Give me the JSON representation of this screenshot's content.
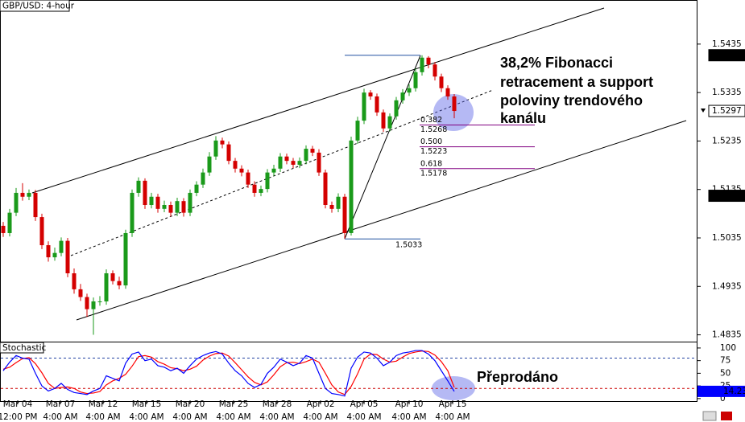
{
  "chart_data": [
    {
      "type": "candlestick",
      "title": "GBP/USD: 4-hour",
      "up_color": "#1a9a1a",
      "down_color": "#d40000",
      "xlim": [
        0,
        108
      ],
      "ylim": [
        1.4821,
        1.5526
      ],
      "xticks": [
        {
          "value": 2.75,
          "label": "Mar 04",
          "time": "12:00 PM"
        },
        {
          "value": 9.375,
          "label": "Mar 07",
          "time": "4:00 AM"
        },
        {
          "value": 16,
          "label": "Mar 12",
          "time": "4:00 AM"
        },
        {
          "value": 22.75,
          "label": "Mar 15",
          "time": "4:00 AM"
        },
        {
          "value": 29.5,
          "label": "Mar 20",
          "time": "4:00 AM"
        },
        {
          "value": 36.25,
          "label": "Mar 25",
          "time": "4:00 AM"
        },
        {
          "value": 43,
          "label": "Mar 28",
          "time": "4:00 AM"
        },
        {
          "value": 49.75,
          "label": "Apr 02",
          "time": "4:00 AM"
        },
        {
          "value": 56.5,
          "label": "Apr 05",
          "time": "4:00 AM"
        },
        {
          "value": 63.5,
          "label": "Apr 10",
          "time": "4:00 AM"
        },
        {
          "value": 70.25,
          "label": "Apr 15",
          "time": "4:00 AM"
        }
      ],
      "yticks": [
        1.5435,
        1.5335,
        1.5235,
        1.5135,
        1.5035,
        1.4935,
        1.4835
      ],
      "open": [
        1.506,
        1.5045,
        1.5087,
        1.5128,
        1.512,
        1.5128,
        1.5078,
        1.502,
        1.4995,
        1.5004,
        1.5029,
        1.4962,
        1.4929,
        1.4913,
        1.4888,
        1.4904,
        1.4904,
        1.4962,
        1.4946,
        1.4937,
        1.5045,
        1.5128,
        1.5153,
        1.5103,
        1.512,
        1.5095,
        1.5103,
        1.5087,
        1.5111,
        1.5087,
        1.5128,
        1.5145,
        1.517,
        1.5203,
        1.5236,
        1.5228,
        1.5194,
        1.5178,
        1.517,
        1.5145,
        1.5128,
        1.5136,
        1.517,
        1.5178,
        1.5203,
        1.5194,
        1.5186,
        1.5194,
        1.5219,
        1.5211,
        1.517,
        1.5103,
        1.5095,
        1.512,
        1.5045,
        1.5236,
        1.5277,
        1.5335,
        1.5327,
        1.5294,
        1.5261,
        1.5286,
        1.5319,
        1.5335,
        1.5344,
        1.5377,
        1.5407,
        1.5393,
        1.5368,
        1.5344,
        1.5327
      ],
      "high": [
        1.5068,
        1.5095,
        1.5138,
        1.5148,
        1.5135,
        1.5134,
        1.5085,
        1.5028,
        1.5015,
        1.5036,
        1.5035,
        1.4972,
        1.494,
        1.492,
        1.4912,
        1.4915,
        1.497,
        1.4968,
        1.4955,
        1.5052,
        1.5135,
        1.516,
        1.5158,
        1.5128,
        1.5126,
        1.5112,
        1.511,
        1.5118,
        1.5117,
        1.5135,
        1.5152,
        1.5178,
        1.5212,
        1.5245,
        1.5242,
        1.5234,
        1.52,
        1.5185,
        1.5176,
        1.5152,
        1.5143,
        1.5177,
        1.5186,
        1.521,
        1.5209,
        1.52,
        1.5201,
        1.5226,
        1.5225,
        1.5218,
        1.5176,
        1.511,
        1.5127,
        1.5126,
        1.5244,
        1.5285,
        1.5343,
        1.534,
        1.5333,
        1.53,
        1.5292,
        1.5326,
        1.5342,
        1.5352,
        1.5385,
        1.5412,
        1.541,
        1.5398,
        1.5374,
        1.535,
        1.5332
      ],
      "low": [
        1.5037,
        1.5038,
        1.508,
        1.5112,
        1.5113,
        1.507,
        1.5012,
        1.4986,
        1.4988,
        1.4997,
        1.4954,
        1.492,
        1.4905,
        1.4872,
        1.4835,
        1.4895,
        1.4897,
        1.4939,
        1.4929,
        1.493,
        1.5037,
        1.512,
        1.5095,
        1.5096,
        1.5087,
        1.5088,
        1.5079,
        1.508,
        1.5079,
        1.508,
        1.5121,
        1.5138,
        1.5163,
        1.5196,
        1.522,
        1.5187,
        1.517,
        1.5162,
        1.5138,
        1.512,
        1.5121,
        1.5129,
        1.5163,
        1.5171,
        1.5187,
        1.5179,
        1.5179,
        1.5187,
        1.5204,
        1.5163,
        1.5096,
        1.5087,
        1.5088,
        1.5033,
        1.504,
        1.5229,
        1.527,
        1.532,
        1.5287,
        1.5254,
        1.5255,
        1.5279,
        1.5312,
        1.5328,
        1.5337,
        1.537,
        1.5385,
        1.536,
        1.5336,
        1.532,
        1.5282
      ],
      "close": [
        1.5045,
        1.5087,
        1.5128,
        1.512,
        1.5128,
        1.5078,
        1.502,
        1.4995,
        1.5004,
        1.5029,
        1.4962,
        1.4929,
        1.4913,
        1.4888,
        1.4904,
        1.4904,
        1.4962,
        1.4946,
        1.4937,
        1.5045,
        1.5128,
        1.5153,
        1.5103,
        1.512,
        1.5095,
        1.5103,
        1.5087,
        1.5111,
        1.5087,
        1.5128,
        1.5145,
        1.517,
        1.5203,
        1.5236,
        1.5228,
        1.5194,
        1.5178,
        1.517,
        1.5145,
        1.5128,
        1.5136,
        1.517,
        1.5178,
        1.5203,
        1.5194,
        1.5186,
        1.5194,
        1.5219,
        1.5211,
        1.517,
        1.5103,
        1.5095,
        1.512,
        1.5045,
        1.5236,
        1.5277,
        1.5335,
        1.5327,
        1.5294,
        1.5261,
        1.5286,
        1.5319,
        1.5335,
        1.5344,
        1.5377,
        1.5407,
        1.5393,
        1.5368,
        1.5344,
        1.5327,
        1.5297
      ],
      "swing_high": 1.5412,
      "swing_low": 1.5033,
      "last_price": 1.5297,
      "marker_price": 1.5122,
      "fibonacci": [
        {
          "ratio": "0.382",
          "price": 1.5268
        },
        {
          "ratio": "0.500",
          "price": 1.5223
        },
        {
          "ratio": "0.618",
          "price": 1.5178
        }
      ],
      "fib_color": "#800080",
      "swing_color": "#2050a0"
    },
    {
      "type": "line",
      "title": "Stochastic",
      "xlim": [
        0,
        108
      ],
      "ylim": [
        -5,
        111
      ],
      "yticks": [
        100,
        75,
        50,
        25,
        0
      ],
      "levels": [
        80,
        20
      ],
      "series": [
        {
          "color": "#0000ff",
          "values": [
            55,
            72,
            85,
            80,
            78,
            50,
            25,
            15,
            20,
            30,
            18,
            12,
            10,
            8,
            15,
            20,
            45,
            40,
            35,
            70,
            88,
            92,
            75,
            78,
            65,
            62,
            55,
            60,
            50,
            65,
            78,
            85,
            90,
            93,
            88,
            70,
            55,
            45,
            30,
            22,
            28,
            50,
            62,
            78,
            72,
            65,
            70,
            85,
            80,
            50,
            20,
            10,
            8,
            5,
            60,
            82,
            92,
            90,
            80,
            65,
            72,
            85,
            90,
            92,
            95,
            95,
            88,
            75,
            55,
            35,
            14.23
          ]
        },
        {
          "color": "#ff0000",
          "values": [
            58,
            62,
            71,
            79,
            81,
            69,
            51,
            30,
            20,
            22,
            23,
            20,
            13,
            10,
            11,
            14,
            27,
            35,
            40,
            48,
            64,
            83,
            85,
            82,
            73,
            68,
            61,
            59,
            55,
            58,
            64,
            76,
            84,
            89,
            90,
            84,
            71,
            57,
            43,
            32,
            27,
            33,
            47,
            63,
            71,
            72,
            69,
            73,
            78,
            72,
            50,
            27,
            13,
            8,
            24,
            49,
            78,
            88,
            87,
            78,
            72,
            74,
            82,
            89,
            92,
            94,
            93,
            86,
            73,
            55,
            22
          ]
        }
      ]
    }
  ],
  "annotations": [
    {
      "lines": [
        "38,2% Fibonacci",
        "retracement a support",
        "poloviny trendového",
        "kanálu"
      ]
    },
    {
      "lines": [
        "Přeprodáno"
      ]
    }
  ]
}
